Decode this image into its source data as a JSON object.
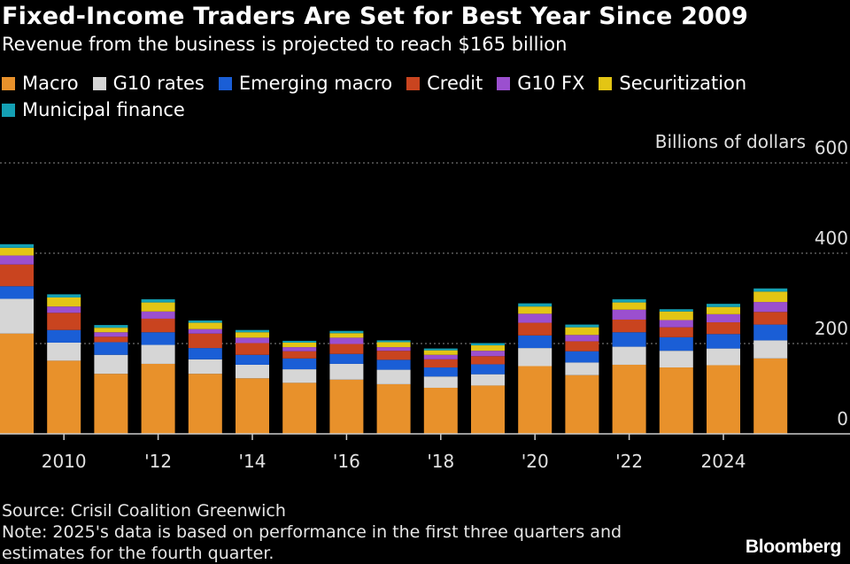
{
  "title": "Fixed-Income Traders Are Set for Best Year Since 2009",
  "subtitle": "Revenue from the business is projected to reach $165 billion",
  "footer": {
    "source": "Source: Crisil Coalition Greenwich",
    "note_line1": "Note: 2025's data is based on performance in the first three quarters and",
    "note_line2": "estimates for the fourth quarter."
  },
  "brand": "Bloomberg",
  "colors": {
    "background": "#000000",
    "gridline": "#8a8a8a",
    "axis": "#cccccc",
    "text": "#ffffff"
  },
  "chart_data": {
    "type": "bar",
    "stacked": true,
    "title": "Fixed-Income Traders Are Set for Best Year Since 2009",
    "subtitle": "Revenue from the business is projected to reach $165 billion",
    "ylabel": "Billions of dollars",
    "ylim": [
      0,
      600
    ],
    "yticks": [
      0,
      200,
      400,
      600
    ],
    "grid": true,
    "legend_position": "top-left",
    "x_tick_labels": [
      {
        "label": "2010",
        "year": 2010
      },
      {
        "label": "'12",
        "year": 2012
      },
      {
        "label": "'14",
        "year": 2014
      },
      {
        "label": "'16",
        "year": 2016
      },
      {
        "label": "'18",
        "year": 2018
      },
      {
        "label": "'20",
        "year": 2020
      },
      {
        "label": "'22",
        "year": 2022
      },
      {
        "label": "2024",
        "year": 2024
      }
    ],
    "categories": [
      "2009",
      "2010",
      "2011",
      "2012",
      "2013",
      "2014",
      "2015",
      "2016",
      "2017",
      "2018",
      "2019",
      "2020",
      "2021",
      "2022",
      "2023",
      "2024",
      "2025"
    ],
    "series": [
      {
        "name": "Macro",
        "color": "#e8912b",
        "values": [
          222,
          162,
          133,
          155,
          133,
          123,
          113,
          120,
          110,
          102,
          107,
          150,
          130,
          153,
          147,
          152,
          167
        ]
      },
      {
        "name": "G10 rates",
        "color": "#d6d6d6",
        "values": [
          77,
          40,
          42,
          42,
          32,
          30,
          30,
          35,
          32,
          25,
          25,
          40,
          28,
          40,
          37,
          37,
          40
        ]
      },
      {
        "name": "Emerging macro",
        "color": "#1a5ed6",
        "values": [
          28,
          28,
          28,
          28,
          25,
          22,
          24,
          22,
          22,
          20,
          22,
          28,
          25,
          32,
          30,
          32,
          35
        ]
      },
      {
        "name": "Credit",
        "color": "#c9441f",
        "values": [
          48,
          38,
          12,
          30,
          32,
          26,
          16,
          22,
          20,
          18,
          18,
          28,
          22,
          28,
          22,
          26,
          28
        ]
      },
      {
        "name": "G10 FX",
        "color": "#9b4fcf",
        "values": [
          20,
          14,
          10,
          16,
          10,
          12,
          9,
          14,
          8,
          10,
          12,
          20,
          14,
          22,
          16,
          18,
          22
        ]
      },
      {
        "name": "Securitization",
        "color": "#e3c514",
        "values": [
          17,
          20,
          10,
          20,
          14,
          12,
          10,
          10,
          11,
          10,
          12,
          16,
          17,
          16,
          19,
          16,
          23
        ]
      },
      {
        "name": "Municipal finance",
        "color": "#14a0b4",
        "values": [
          8,
          7,
          6,
          7,
          5,
          5,
          4,
          5,
          4,
          4,
          5,
          7,
          6,
          7,
          5,
          7,
          7
        ]
      }
    ]
  }
}
